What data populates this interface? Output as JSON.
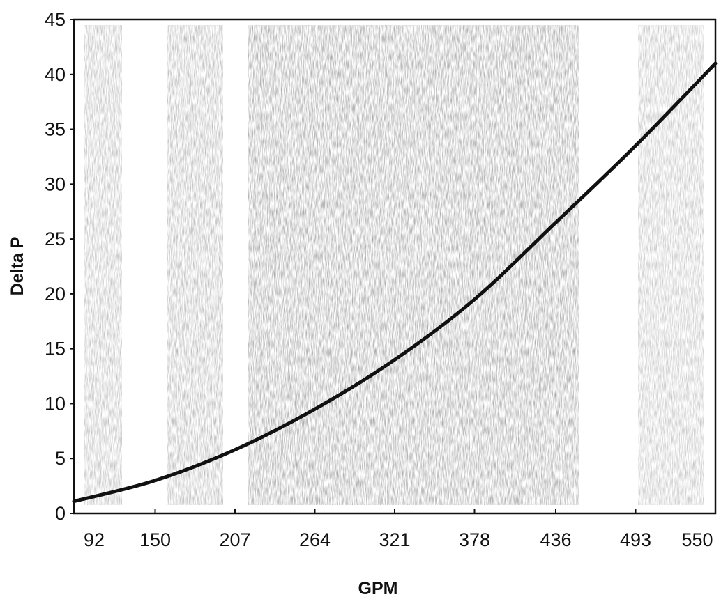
{
  "chart_data": {
    "type": "line",
    "title": "",
    "xlabel": "GPM",
    "ylabel": "Delta P",
    "x_ticks": [
      "92",
      "150",
      "207",
      "264",
      "321",
      "378",
      "436",
      "493",
      "550"
    ],
    "y_ticks": [
      "0",
      "5",
      "10",
      "15",
      "20",
      "25",
      "30",
      "35",
      "40",
      "45"
    ],
    "xlim": [
      92,
      550
    ],
    "ylim": [
      0,
      45
    ],
    "grid": false,
    "legend": "none",
    "background": "halftone-stippled-bands",
    "series": [
      {
        "color": "#111111",
        "x": [
          92,
          150,
          207,
          264,
          321,
          378,
          436,
          493,
          550
        ],
        "y": [
          1.1,
          3.0,
          5.8,
          9.5,
          14.0,
          19.5,
          26.5,
          33.5,
          41.0
        ]
      }
    ]
  }
}
